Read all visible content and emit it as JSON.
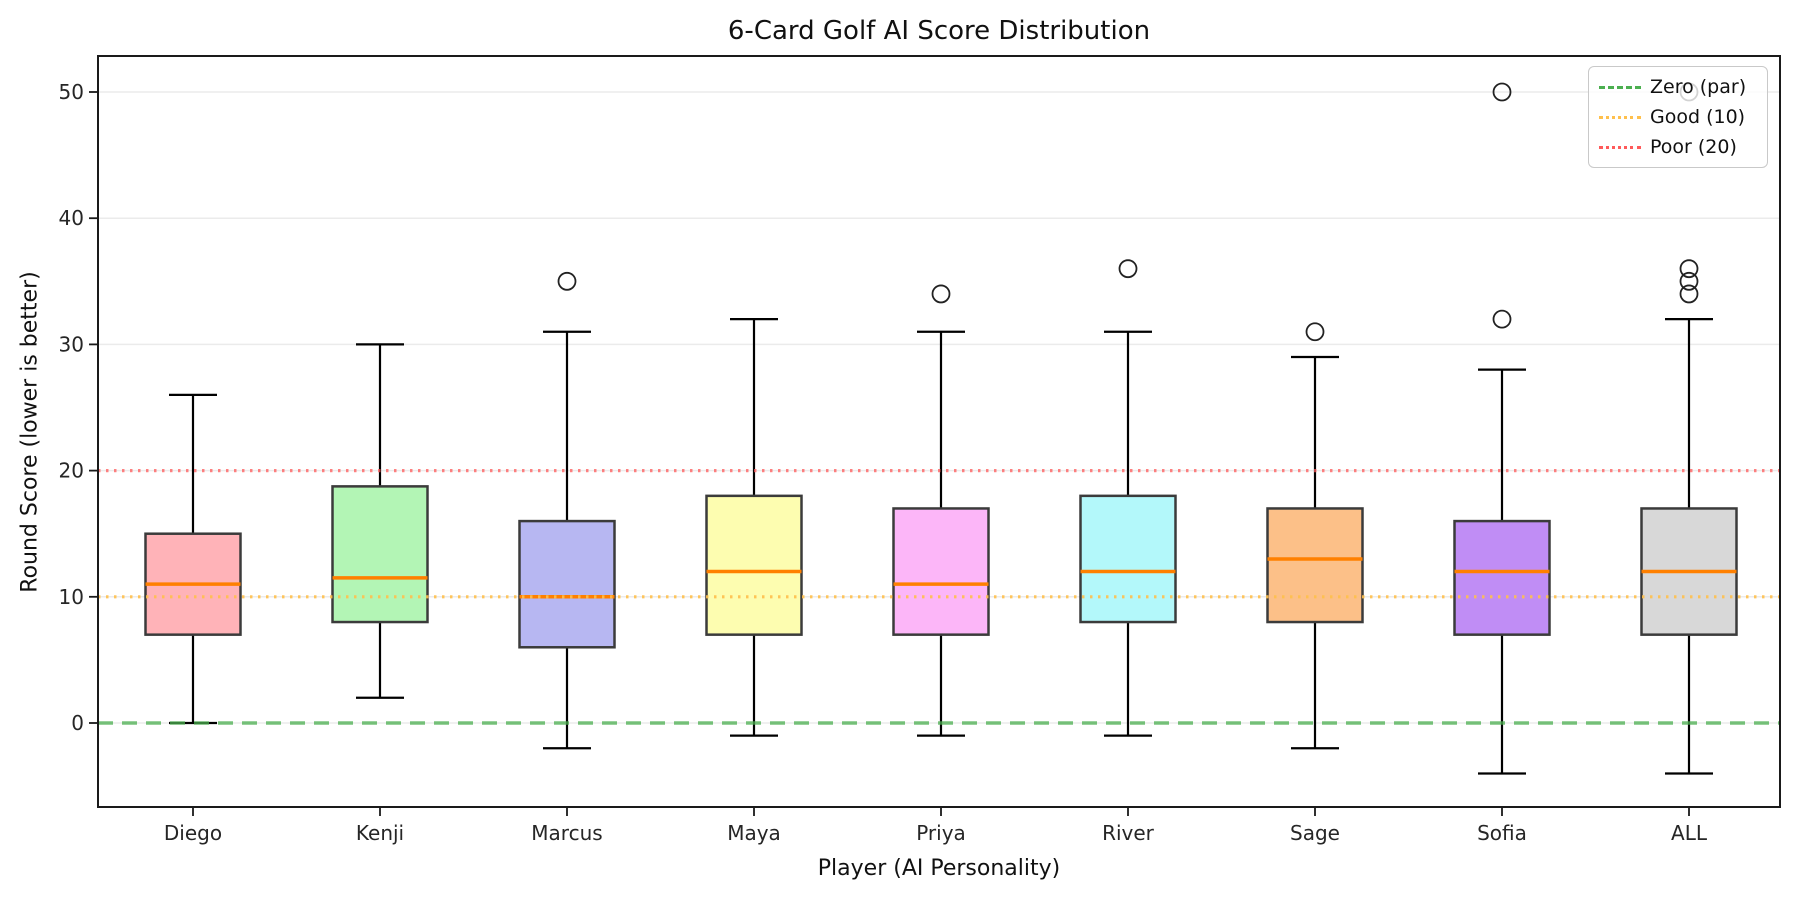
{
  "chart_data": {
    "type": "box",
    "title": "6-Card Golf AI Score Distribution",
    "xlabel": "Player (AI Personality)",
    "ylabel": "Round Score (lower is better)",
    "ylim": [
      -6.7,
      52.7
    ],
    "yticks": [
      0,
      10,
      20,
      30,
      40,
      50
    ],
    "grid": "horizontal-light",
    "legend_position": "upper right",
    "categories": [
      "Diego",
      "Kenji",
      "Marcus",
      "Maya",
      "Priya",
      "River",
      "Sage",
      "Sofia",
      "ALL"
    ],
    "series": [
      {
        "name": "Diego",
        "whisker_low": 0,
        "q1": 7,
        "median": 11,
        "q3": 15,
        "whisker_high": 26,
        "fliers": [],
        "color": "#ffb3b8"
      },
      {
        "name": "Kenji",
        "whisker_low": 2,
        "q1": 8,
        "median": 11.5,
        "q3": 18.75,
        "whisker_high": 30,
        "fliers": [],
        "color": "#b3f5b5"
      },
      {
        "name": "Marcus",
        "whisker_low": -2,
        "q1": 6,
        "median": 10,
        "q3": 16,
        "whisker_high": 31,
        "fliers": [
          35
        ],
        "color": "#b7b7f2"
      },
      {
        "name": "Maya",
        "whisker_low": -1,
        "q1": 7,
        "median": 12,
        "q3": 18,
        "whisker_high": 32,
        "fliers": [],
        "color": "#fdfdb0"
      },
      {
        "name": "Priya",
        "whisker_low": -1,
        "q1": 7,
        "median": 11,
        "q3": 17,
        "whisker_high": 31,
        "fliers": [
          34
        ],
        "color": "#fcb6f8"
      },
      {
        "name": "River",
        "whisker_low": -1,
        "q1": 8,
        "median": 12,
        "q3": 18,
        "whisker_high": 31,
        "fliers": [
          36
        ],
        "color": "#b3f8fa"
      },
      {
        "name": "Sage",
        "whisker_low": -2,
        "q1": 8,
        "median": 13,
        "q3": 17,
        "whisker_high": 29,
        "fliers": [
          31
        ],
        "color": "#fcc088"
      },
      {
        "name": "Sofia",
        "whisker_low": -4,
        "q1": 7,
        "median": 12,
        "q3": 16,
        "whisker_high": 28,
        "fliers": [
          32,
          50
        ],
        "color": "#c08df5"
      },
      {
        "name": "ALL",
        "whisker_low": -4,
        "q1": 7,
        "median": 12,
        "q3": 17,
        "whisker_high": 32,
        "fliers": [
          34,
          35,
          36,
          50
        ],
        "color": "#d8d8d8"
      }
    ],
    "reference_lines": [
      {
        "label": "Zero (par)",
        "value": 0,
        "color": "#4caf50",
        "style": "dashed",
        "opacity": 0.75
      },
      {
        "label": "Good (10)",
        "value": 10,
        "color": "#ffc04d",
        "style": "dotted",
        "opacity": 0.9
      },
      {
        "label": "Poor (20)",
        "value": 20,
        "color": "#ff5a5a",
        "style": "dotted",
        "opacity": 0.75
      }
    ],
    "style": {
      "median_color": "#ff8000",
      "box_edge_color": "#3b3b3b",
      "whisker_color": "#000000",
      "grid_color": "#ebebeb",
      "spine_color": "#1a1a1a",
      "tick_label_color": "#262626"
    }
  }
}
